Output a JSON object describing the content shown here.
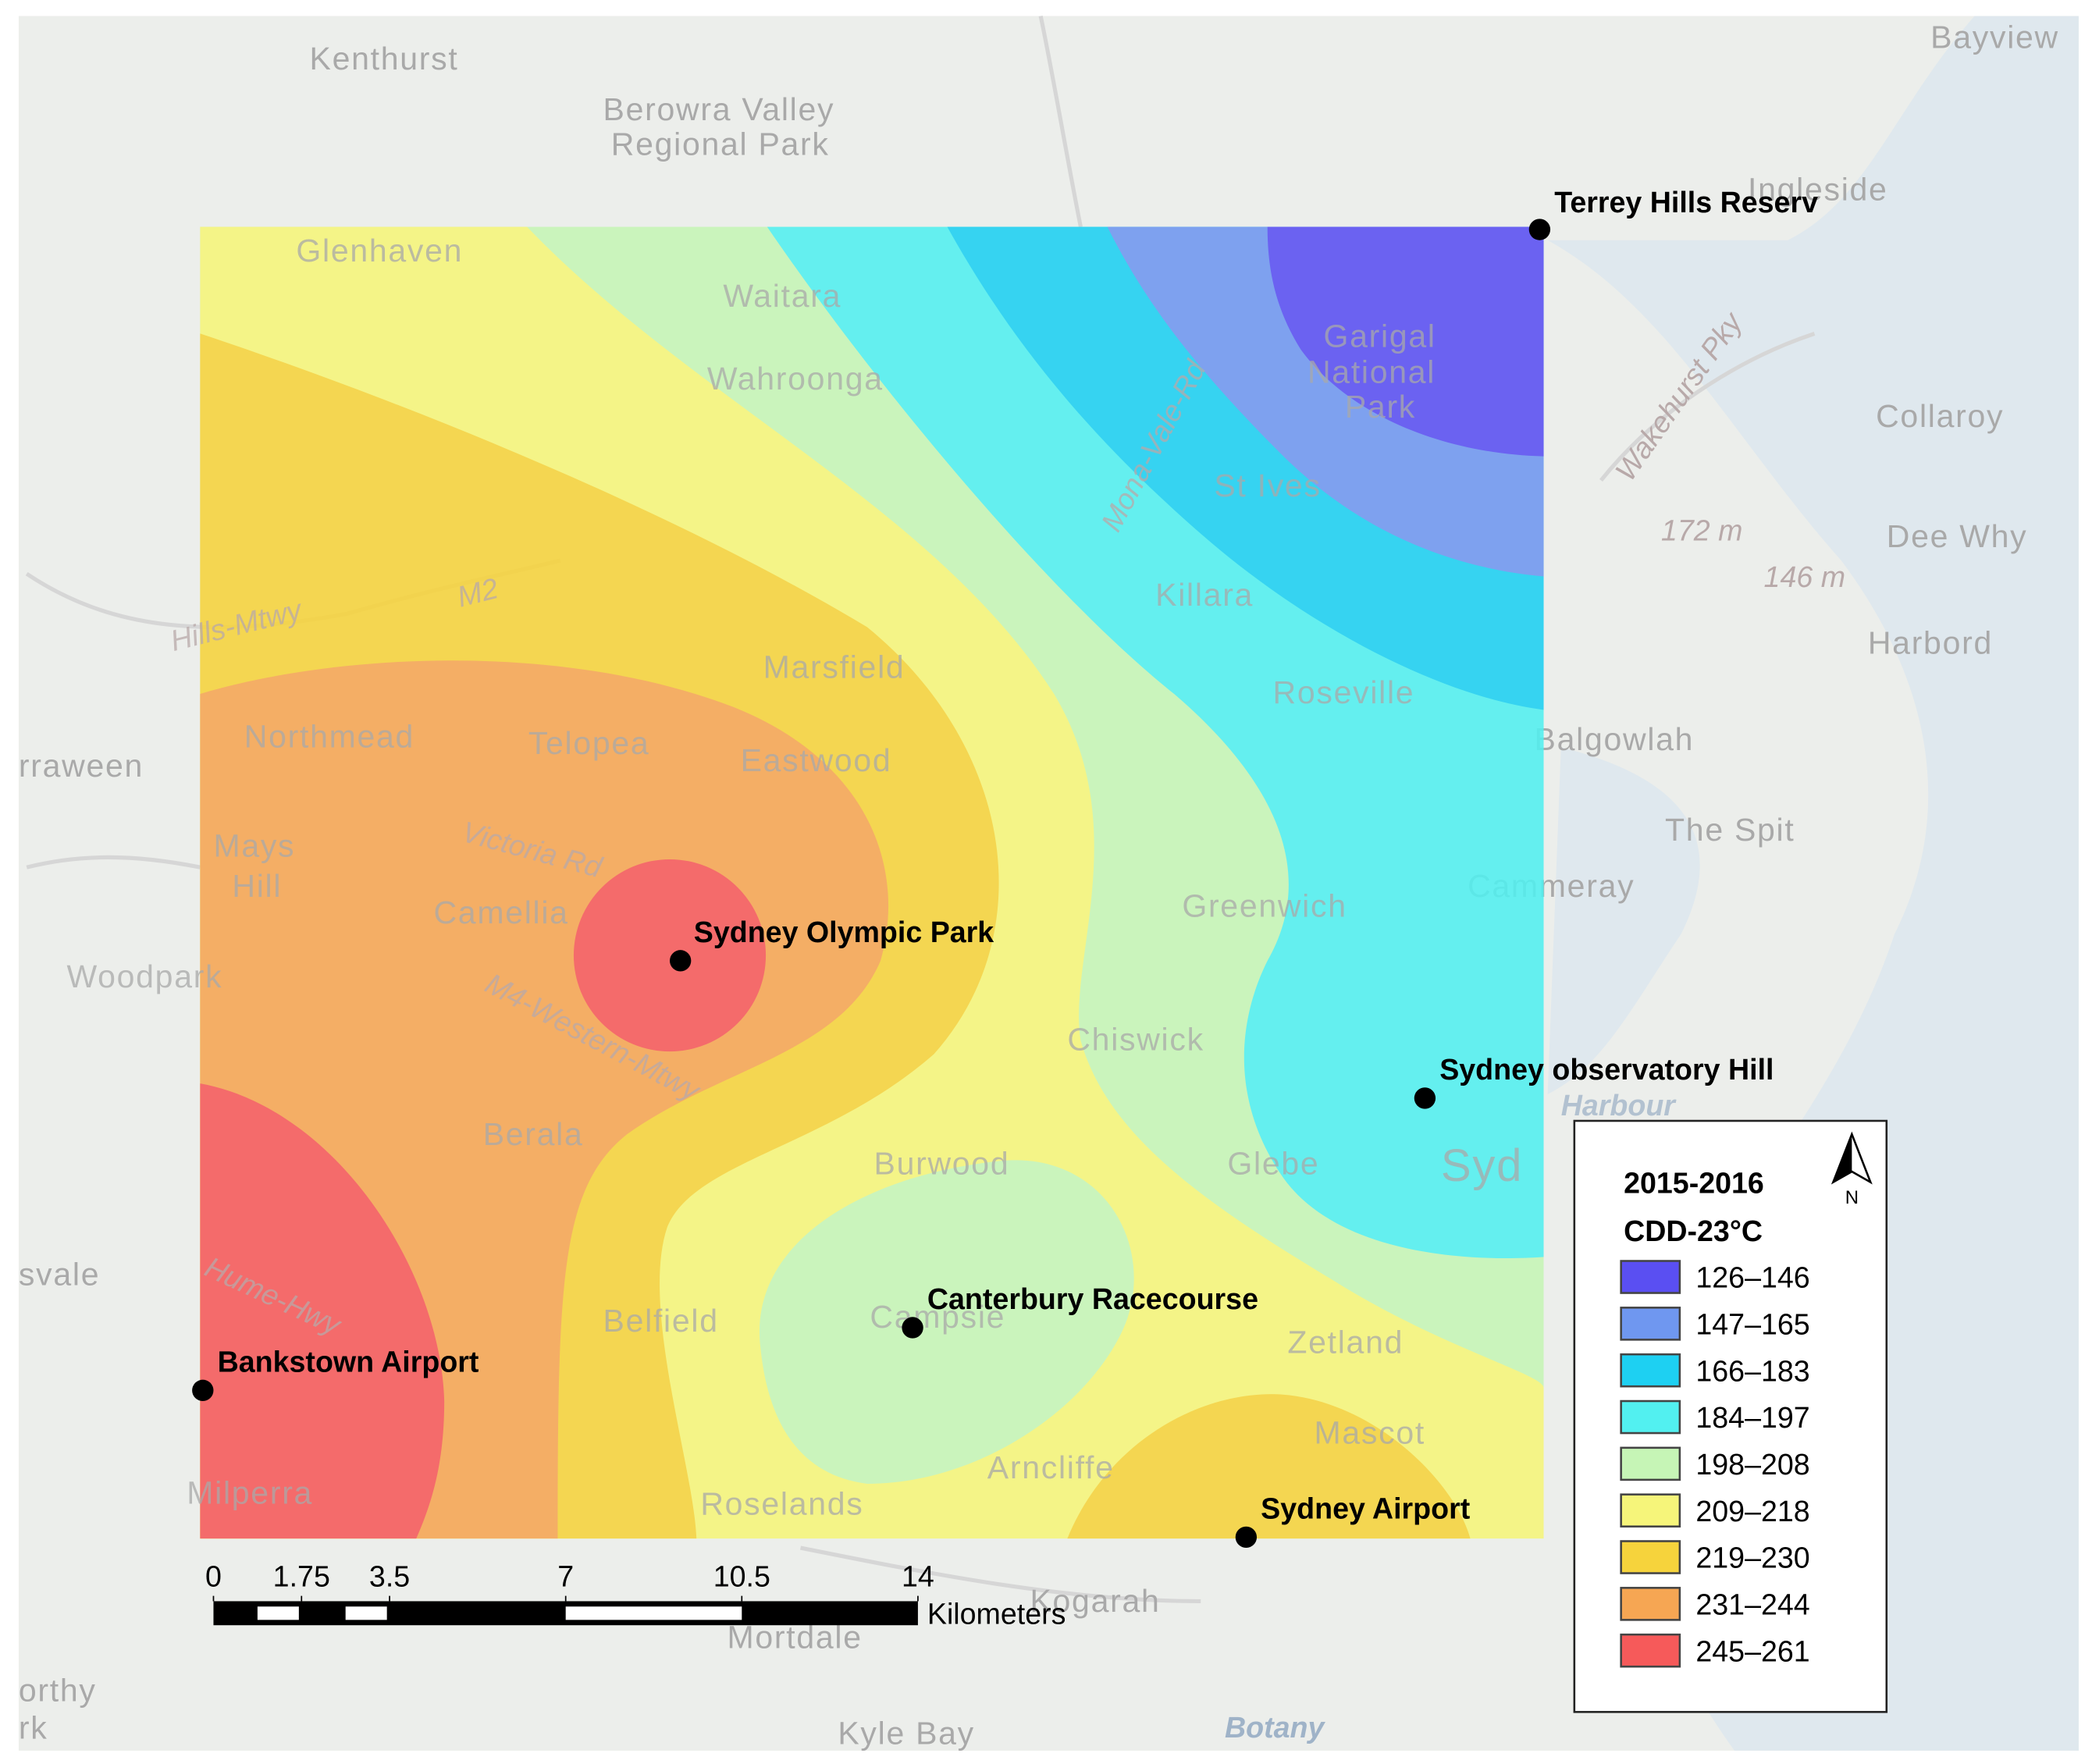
{
  "legend": {
    "title": "2015-2016",
    "subtitle": "CDD-23°C",
    "north": "N",
    "entries": [
      {
        "label": "126–146",
        "color": "#5a4ff2"
      },
      {
        "label": "147–165",
        "color": "#6f97f0"
      },
      {
        "label": "166–183",
        "color": "#1ed0f2"
      },
      {
        "label": "184–197",
        "color": "#52f0f0"
      },
      {
        "label": "198–208",
        "color": "#c6f5b6"
      },
      {
        "label": "209–218",
        "color": "#f6f57a"
      },
      {
        "label": "219–230",
        "color": "#f6d33c"
      },
      {
        "label": "231–244",
        "color": "#f6a653"
      },
      {
        "label": "245–261",
        "color": "#f65a5a"
      }
    ]
  },
  "stations": [
    "Terrey Hills Reserv",
    "Sydney Olympic Park",
    "Sydney observatory Hill",
    "Canterbury Racecourse",
    "Bankstown Airport",
    "Sydney Airport"
  ],
  "scale_bar": {
    "ticks": [
      0,
      1.75,
      3.5,
      7,
      10.5,
      14
    ],
    "unit": "Kilometers"
  },
  "basemap_labels": [
    "Kenthurst",
    "Berowra Valley",
    "Regional Park",
    "Bayview",
    "Ingleside",
    "Glenhaven",
    "Waitara",
    "Wahroonga",
    "Garigal",
    "National",
    "Park",
    "St Ives",
    "Collaroy",
    "172 m",
    "Dee Why",
    "146 m",
    "Harbord",
    "Killara",
    "Roseville",
    "Balgowlah",
    "The Spit",
    "Cammeray",
    "Marsfield",
    "Northmead",
    "Telopea",
    "Eastwood",
    "Mays",
    "Hill",
    "Camellia",
    "Greenwich",
    "Woodpark",
    "Chiswick",
    "Berala",
    "Burwood",
    "Glebe",
    "Syd",
    "Belfield",
    "Campsie",
    "Zetland",
    "Mascot",
    "Arncliffe",
    "Roselands",
    "Milperra",
    "Kogarah",
    "Mortdale",
    "Kyle Bay",
    "rraween",
    "svale",
    "orthy",
    "rk",
    "Hills-Mtwy",
    "M2",
    "M4-Western-Mtwy",
    "Hume-Hwy",
    "Mona-Vale-Rd",
    "Wakehurst Pky",
    "Victoria Rd",
    "Harbour",
    "Botany"
  ]
}
